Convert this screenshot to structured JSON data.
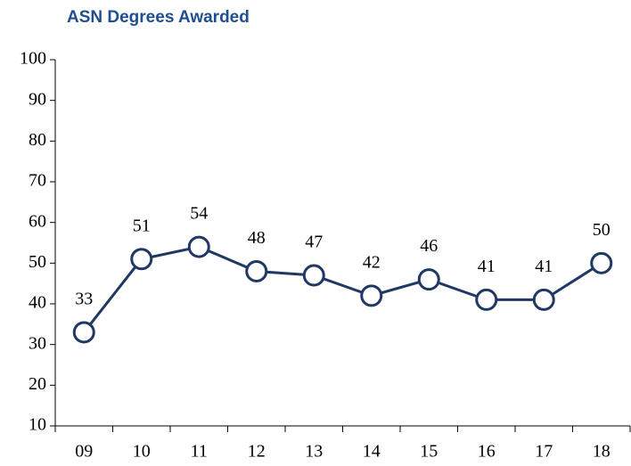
{
  "chart_data": {
    "type": "line",
    "title": "ASN Degrees Awarded",
    "categories": [
      "09",
      "10",
      "11",
      "12",
      "13",
      "14",
      "15",
      "16",
      "17",
      "18"
    ],
    "series": [
      {
        "color": "#1f3864",
        "values": [
          33,
          51,
          54,
          48,
          47,
          42,
          46,
          41,
          41,
          50
        ]
      }
    ],
    "ylim": [
      10,
      100
    ],
    "yticks": [
      10,
      20,
      30,
      40,
      50,
      60,
      70,
      80,
      90,
      100
    ],
    "grid": false
  }
}
